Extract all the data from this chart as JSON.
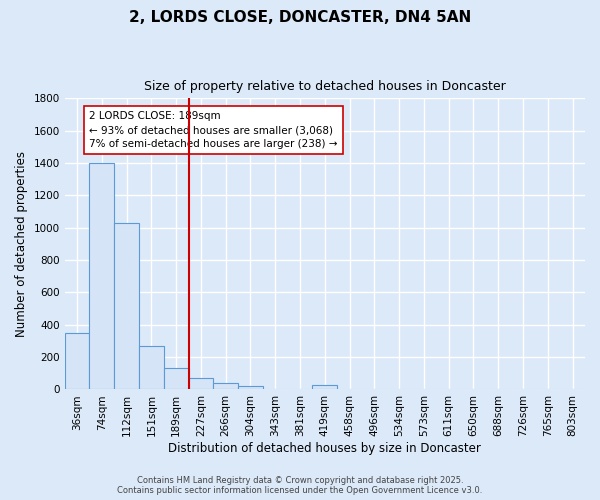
{
  "title": "2, LORDS CLOSE, DONCASTER, DN4 5AN",
  "subtitle": "Size of property relative to detached houses in Doncaster",
  "xlabel": "Distribution of detached houses by size in Doncaster",
  "ylabel": "Number of detached properties",
  "categories": [
    "36sqm",
    "74sqm",
    "112sqm",
    "151sqm",
    "189sqm",
    "227sqm",
    "266sqm",
    "304sqm",
    "343sqm",
    "381sqm",
    "419sqm",
    "458sqm",
    "496sqm",
    "534sqm",
    "573sqm",
    "611sqm",
    "650sqm",
    "688sqm",
    "726sqm",
    "765sqm",
    "803sqm"
  ],
  "values": [
    350,
    1400,
    1030,
    270,
    130,
    70,
    40,
    20,
    0,
    0,
    25,
    0,
    0,
    0,
    0,
    0,
    0,
    0,
    0,
    0,
    5
  ],
  "bar_color": "#d6e4f7",
  "bar_edge_color": "#5b9bd5",
  "reference_line_x": 4,
  "reference_line_color": "#cc0000",
  "annotation_text": "2 LORDS CLOSE: 189sqm\n← 93% of detached houses are smaller (3,068)\n7% of semi-detached houses are larger (238) →",
  "annotation_box_facecolor": "#ffffff",
  "annotation_box_edgecolor": "#cc0000",
  "ylim": [
    0,
    1800
  ],
  "yticks": [
    0,
    200,
    400,
    600,
    800,
    1000,
    1200,
    1400,
    1600,
    1800
  ],
  "background_color": "#dce9f8",
  "plot_bg_color": "#dce9f8",
  "grid_color": "#ffffff",
  "footer_line1": "Contains HM Land Registry data © Crown copyright and database right 2025.",
  "footer_line2": "Contains public sector information licensed under the Open Government Licence v3.0.",
  "title_fontsize": 11,
  "subtitle_fontsize": 9,
  "xlabel_fontsize": 8.5,
  "ylabel_fontsize": 8.5,
  "tick_fontsize": 7.5,
  "annotation_fontsize": 7.5,
  "footer_fontsize": 6
}
